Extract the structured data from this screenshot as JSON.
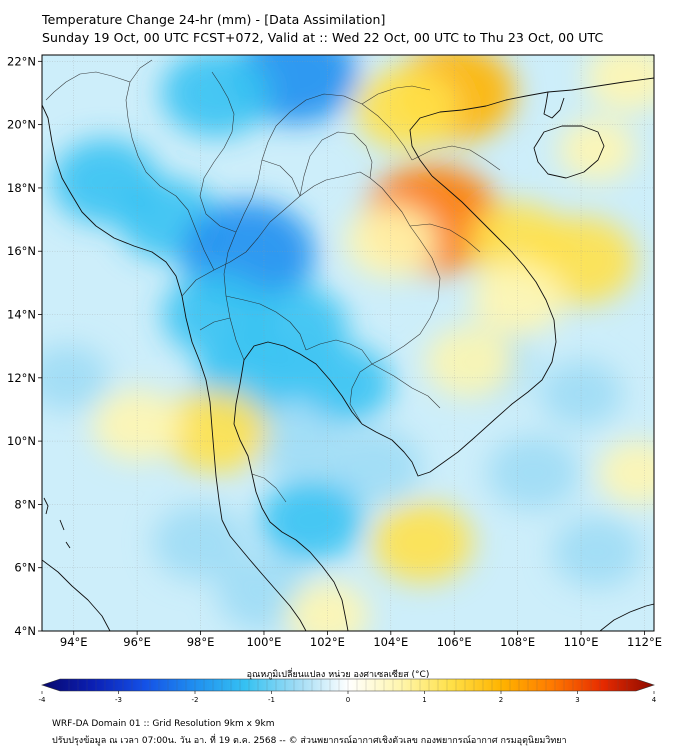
{
  "header": {
    "title_line1": "Temperature Change 24-hr (mm) - [Data Assimilation]",
    "title_line2": "Sunday 19 Oct, 00 UTC FCST+072, Valid at :: Wed 22 Oct, 00 UTC to Thu 23 Oct, 00 UTC"
  },
  "axes": {
    "lon_labels": [
      "94°E",
      "96°E",
      "98°E",
      "100°E",
      "102°E",
      "104°E",
      "106°E",
      "108°E",
      "110°E",
      "112°E"
    ],
    "lon_values": [
      94,
      96,
      98,
      100,
      102,
      104,
      106,
      108,
      110,
      112
    ],
    "lat_labels": [
      "22°N",
      "20°N",
      "18°N",
      "16°N",
      "14°N",
      "12°N",
      "10°N",
      "8°N",
      "6°N",
      "4°N"
    ],
    "lat_values": [
      22,
      20,
      18,
      16,
      14,
      12,
      10,
      8,
      6,
      4
    ],
    "lon_range": [
      93,
      112.3
    ],
    "lat_range": [
      4,
      22.2
    ]
  },
  "colorbar": {
    "label": "อุณหภูมิเปลี่ยนแปลง หน่วย องศาเซลเซียส (°C)",
    "ticks": [
      "-4",
      "-3",
      "-2",
      "-1",
      "0",
      "1",
      "2",
      "3",
      "4"
    ],
    "range": [
      -4,
      4
    ],
    "colors": [
      "#08086e",
      "#0b1fb4",
      "#1450e6",
      "#1f8ff0",
      "#36c2f2",
      "#9fdcf5",
      "#ffffff",
      "#fff6b0",
      "#ffe14a",
      "#ffb400",
      "#ff7a00",
      "#e62a00",
      "#8c0a00"
    ]
  },
  "footer": {
    "line1": "WRF-DA Domain 01 :: Grid Resolution 9km x 9km",
    "line2": "ปรับปรุงข้อมูล ณ เวลา 07:00น. วัน อา. ที่ 19 ต.ค. 2568 -- © ส่วนพยากรณ์อากาศเชิงตัวเลข กองพยากรณ์อากาศ กรมอุตุนิยมวิทยา"
  },
  "field_blobs": [
    {
      "lon": 101.0,
      "lat": 21.6,
      "value": -2.0
    },
    {
      "lon": 98.5,
      "lat": 21.0,
      "value": -1.5
    },
    {
      "lon": 95.0,
      "lat": 18.2,
      "value": -1.4
    },
    {
      "lon": 97.0,
      "lat": 17.0,
      "value": -1.2
    },
    {
      "lon": 99.5,
      "lat": 15.9,
      "value": -2.3
    },
    {
      "lon": 98.5,
      "lat": 14.0,
      "value": -1.4
    },
    {
      "lon": 101.0,
      "lat": 13.6,
      "value": -1.3
    },
    {
      "lon": 102.5,
      "lat": 11.8,
      "value": -1.1
    },
    {
      "lon": 99.5,
      "lat": 12.0,
      "value": -1.3
    },
    {
      "lon": 101.0,
      "lat": 10.0,
      "value": -0.8
    },
    {
      "lon": 103.5,
      "lat": 9.2,
      "value": -1.0
    },
    {
      "lon": 101.5,
      "lat": 7.5,
      "value": -1.3
    },
    {
      "lon": 98.0,
      "lat": 6.8,
      "value": -1.0
    },
    {
      "lon": 100.0,
      "lat": 5.2,
      "value": -1.0
    },
    {
      "lon": 107.0,
      "lat": 12.5,
      "value": -0.9
    },
    {
      "lon": 110.0,
      "lat": 11.5,
      "value": -0.6
    },
    {
      "lon": 108.5,
      "lat": 9.0,
      "value": -0.9
    },
    {
      "lon": 110.5,
      "lat": 6.5,
      "value": -0.8
    },
    {
      "lon": 93.8,
      "lat": 12.0,
      "value": -0.6
    },
    {
      "lon": 105.3,
      "lat": 17.0,
      "value": 2.4
    },
    {
      "lon": 106.0,
      "lat": 21.0,
      "value": 1.9
    },
    {
      "lon": 104.5,
      "lat": 20.5,
      "value": 1.3
    },
    {
      "lon": 110.0,
      "lat": 15.7,
      "value": 1.5
    },
    {
      "lon": 108.0,
      "lat": 16.3,
      "value": 1.1
    },
    {
      "lon": 104.0,
      "lat": 16.3,
      "value": 0.9
    },
    {
      "lon": 106.5,
      "lat": 12.5,
      "value": 0.8
    },
    {
      "lon": 98.5,
      "lat": 10.3,
      "value": 1.3
    },
    {
      "lon": 96.0,
      "lat": 10.5,
      "value": 0.8
    },
    {
      "lon": 105.0,
      "lat": 6.8,
      "value": 1.2
    },
    {
      "lon": 102.0,
      "lat": 4.5,
      "value": 0.6
    },
    {
      "lon": 111.5,
      "lat": 21.5,
      "value": 0.7
    },
    {
      "lon": 111.8,
      "lat": 9.0,
      "value": 0.5
    },
    {
      "lon": 108.0,
      "lat": 14.5,
      "value": 0.9
    },
    {
      "lon": 110.5,
      "lat": 19.2,
      "value": 0.4
    }
  ]
}
